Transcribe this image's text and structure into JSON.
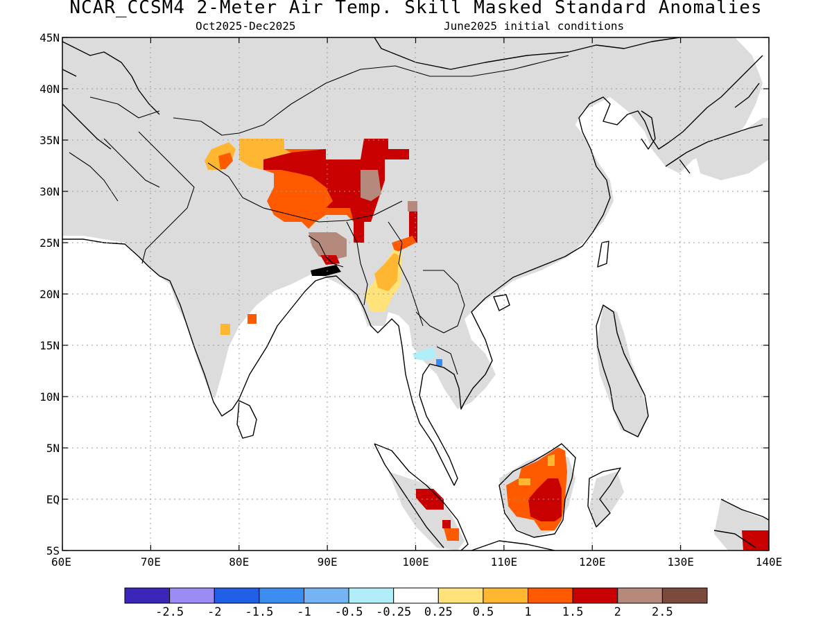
{
  "header": {
    "title": "NCAR_CCSM4 2-Meter Air Temp. Skill Masked Standard Anomalies",
    "period": "Oct2025-Dec2025",
    "init": "June2025 initial conditions"
  },
  "map": {
    "lon_range": [
      60,
      140
    ],
    "lat_range": [
      -5,
      45
    ],
    "lon_ticks": [
      {
        "v": 60,
        "label": "60E"
      },
      {
        "v": 70,
        "label": "70E"
      },
      {
        "v": 80,
        "label": "80E"
      },
      {
        "v": 90,
        "label": "90E"
      },
      {
        "v": 100,
        "label": "100E"
      },
      {
        "v": 110,
        "label": "110E"
      },
      {
        "v": 120,
        "label": "120E"
      },
      {
        "v": 130,
        "label": "130E"
      },
      {
        "v": 140,
        "label": "140E"
      }
    ],
    "lat_ticks": [
      {
        "v": 45,
        "label": "45N"
      },
      {
        "v": 40,
        "label": "40N"
      },
      {
        "v": 35,
        "label": "35N"
      },
      {
        "v": 30,
        "label": "30N"
      },
      {
        "v": 25,
        "label": "25N"
      },
      {
        "v": 20,
        "label": "20N"
      },
      {
        "v": 15,
        "label": "15N"
      },
      {
        "v": 10,
        "label": "10N"
      },
      {
        "v": 5,
        "label": "5N"
      },
      {
        "v": 0,
        "label": "EQ"
      },
      {
        "v": -5,
        "label": "5S"
      }
    ],
    "mask_color": "#dcdcdc",
    "coast_color": "#000000"
  },
  "colorbar": {
    "colors": [
      "#3a26b8",
      "#9b8cf5",
      "#1f60e6",
      "#3b8ef0",
      "#74b4f5",
      "#b1eefa",
      "#ffffff",
      "#ffe27a",
      "#ffb732",
      "#ff5a00",
      "#c80000",
      "#b58a7c",
      "#7a4a3c"
    ],
    "labels": [
      "-2.5",
      "-2",
      "-1.5",
      "-1",
      "-0.5",
      "-0.25",
      "0.25",
      "0.5",
      "1",
      "1.5",
      "2",
      "2.5"
    ]
  },
  "anomaly_regions": [
    {
      "name": "tibet-plateau",
      "value": "1.5",
      "color": "#ff5a00"
    },
    {
      "name": "tibet-core",
      "value": "2",
      "color": "#c80000"
    },
    {
      "name": "kashmir",
      "value": "1",
      "color": "#ffb732"
    },
    {
      "name": "myanmar",
      "value": "0.5",
      "color": "#ffe27a"
    },
    {
      "name": "northeast-india",
      "value": "2.5",
      "color": "#b58a7c"
    },
    {
      "name": "borneo",
      "value": "1.5",
      "color": "#ff5a00"
    },
    {
      "name": "borneo-core",
      "value": "2",
      "color": "#c80000"
    },
    {
      "name": "sumatra",
      "value": "2",
      "color": "#c80000"
    },
    {
      "name": "new-guinea",
      "value": "2",
      "color": "#c80000"
    },
    {
      "name": "thailand",
      "value": "-0.25",
      "color": "#b1eefa"
    }
  ]
}
